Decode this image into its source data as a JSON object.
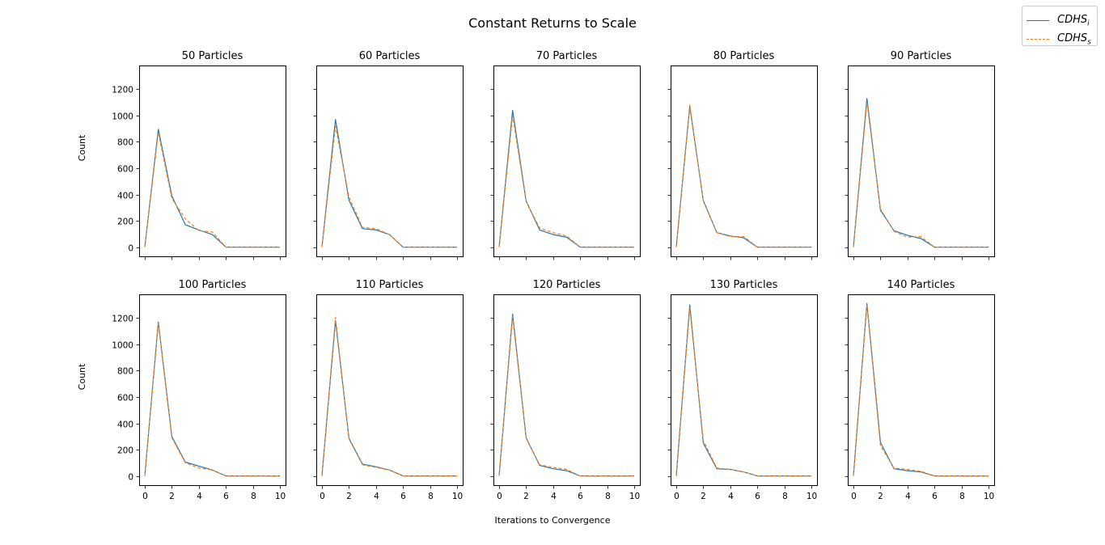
{
  "figure": {
    "title": "Constant Returns to Scale",
    "xlabel": "Iterations to Convergence",
    "ylabel": "Count"
  },
  "legend": {
    "items": [
      {
        "base": "CDHS",
        "sub": "i",
        "color": "#1f77b4",
        "style": "solid"
      },
      {
        "base": "CDHS",
        "sub": "s",
        "color": "#ff7f0e",
        "style": "dashed"
      }
    ],
    "placement": "top-right"
  },
  "chart_data": {
    "type": "line",
    "xlim": [
      0,
      10
    ],
    "ylim": [
      -70,
      1380
    ],
    "xticks": [
      0,
      2,
      4,
      6,
      8,
      10
    ],
    "yticks": [
      0,
      200,
      400,
      600,
      800,
      1000,
      1200
    ],
    "grid": false,
    "x": [
      0,
      1,
      2,
      3,
      4,
      5,
      6,
      7,
      8,
      9,
      10
    ],
    "panels": [
      {
        "title": "50 Particles",
        "series": [
          {
            "name": "CDHS_i",
            "values": [
              0,
              895,
              390,
              170,
              130,
              95,
              0,
              0,
              0,
              0,
              0
            ]
          },
          {
            "name": "CDHS_s",
            "values": [
              0,
              870,
              370,
              215,
              125,
              115,
              0,
              0,
              0,
              0,
              0
            ]
          }
        ]
      },
      {
        "title": "60 Particles",
        "series": [
          {
            "name": "CDHS_i",
            "values": [
              0,
              970,
              355,
              140,
              130,
              95,
              0,
              0,
              0,
              0,
              0
            ]
          },
          {
            "name": "CDHS_s",
            "values": [
              0,
              920,
              380,
              150,
              140,
              95,
              0,
              0,
              0,
              0,
              0
            ]
          }
        ]
      },
      {
        "title": "70 Particles",
        "series": [
          {
            "name": "CDHS_i",
            "values": [
              0,
              1040,
              350,
              130,
              95,
              75,
              0,
              0,
              0,
              0,
              0
            ]
          },
          {
            "name": "CDHS_s",
            "values": [
              0,
              1000,
              345,
              145,
              110,
              85,
              0,
              0,
              0,
              0,
              0
            ]
          }
        ]
      },
      {
        "title": "80 Particles",
        "series": [
          {
            "name": "CDHS_i",
            "values": [
              0,
              1070,
              355,
              110,
              85,
              70,
              0,
              0,
              0,
              0,
              0
            ]
          },
          {
            "name": "CDHS_s",
            "values": [
              0,
              1080,
              350,
              110,
              80,
              80,
              0,
              0,
              0,
              0,
              0
            ]
          }
        ]
      },
      {
        "title": "90 Particles",
        "series": [
          {
            "name": "CDHS_i",
            "values": [
              0,
              1130,
              280,
              125,
              90,
              65,
              0,
              0,
              0,
              0,
              0
            ]
          },
          {
            "name": "CDHS_s",
            "values": [
              0,
              1100,
              290,
              120,
              75,
              80,
              0,
              0,
              0,
              0,
              0
            ]
          }
        ]
      },
      {
        "title": "100 Particles",
        "series": [
          {
            "name": "CDHS_i",
            "values": [
              0,
              1170,
              300,
              105,
              75,
              45,
              0,
              0,
              0,
              0,
              0
            ]
          },
          {
            "name": "CDHS_s",
            "values": [
              0,
              1160,
              290,
              100,
              60,
              45,
              0,
              0,
              0,
              0,
              0
            ]
          }
        ]
      },
      {
        "title": "110 Particles",
        "series": [
          {
            "name": "CDHS_i",
            "values": [
              0,
              1180,
              285,
              90,
              70,
              45,
              0,
              0,
              0,
              0,
              0
            ]
          },
          {
            "name": "CDHS_s",
            "values": [
              0,
              1205,
              280,
              85,
              65,
              45,
              0,
              0,
              0,
              0,
              0
            ]
          }
        ]
      },
      {
        "title": "120 Particles",
        "series": [
          {
            "name": "CDHS_i",
            "values": [
              0,
              1230,
              290,
              80,
              55,
              40,
              0,
              0,
              0,
              0,
              0
            ]
          },
          {
            "name": "CDHS_s",
            "values": [
              0,
              1210,
              285,
              85,
              65,
              50,
              0,
              0,
              0,
              0,
              0
            ]
          }
        ]
      },
      {
        "title": "130 Particles",
        "series": [
          {
            "name": "CDHS_i",
            "values": [
              0,
              1300,
              250,
              55,
              50,
              30,
              0,
              0,
              0,
              0,
              0
            ]
          },
          {
            "name": "CDHS_s",
            "values": [
              0,
              1275,
              270,
              60,
              50,
              30,
              0,
              0,
              0,
              0,
              0
            ]
          }
        ]
      },
      {
        "title": "140 Particles",
        "series": [
          {
            "name": "CDHS_i",
            "values": [
              0,
              1310,
              255,
              55,
              40,
              30,
              0,
              0,
              0,
              0,
              0
            ]
          },
          {
            "name": "CDHS_s",
            "values": [
              0,
              1300,
              230,
              60,
              50,
              35,
              0,
              0,
              0,
              0,
              0
            ]
          }
        ]
      }
    ]
  }
}
